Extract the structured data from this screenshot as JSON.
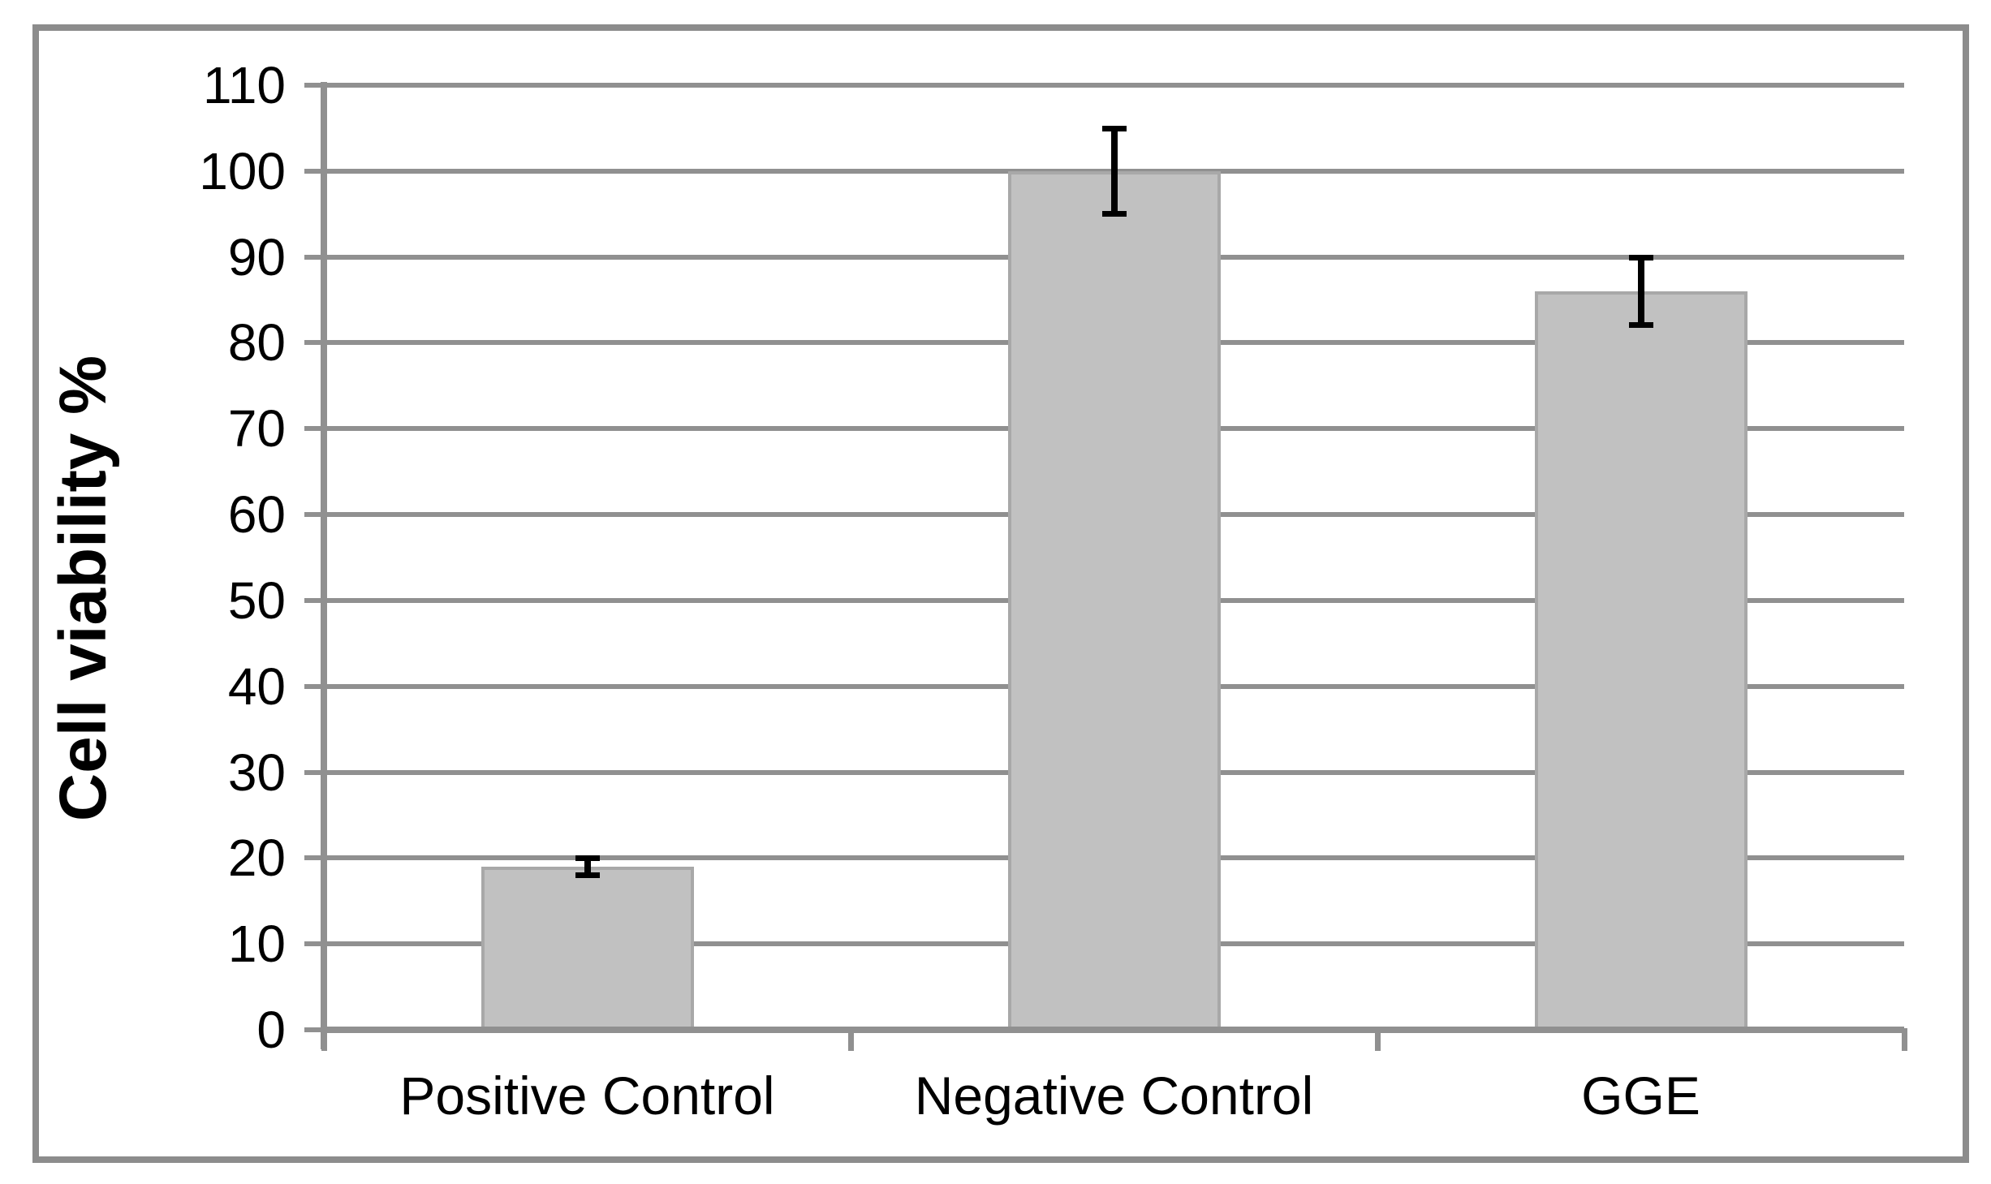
{
  "figure": {
    "background_color": "#FFFFFF",
    "frame_color": "#8C8C8C",
    "text_color": "#000000"
  },
  "chart_data": {
    "type": "bar",
    "title": "",
    "xlabel": "",
    "ylabel": "Cell viability %",
    "categories": [
      "Positive Control",
      "Negative Control",
      "GGE"
    ],
    "values": [
      19,
      100,
      86
    ],
    "errors": [
      1,
      5,
      4
    ],
    "ylim": [
      0,
      110
    ],
    "ytick_interval": 10,
    "yticks": [
      0,
      10,
      20,
      30,
      40,
      50,
      60,
      70,
      80,
      90,
      100,
      110
    ],
    "grid": "horizontal",
    "legend_position": "none",
    "bar_fill_color": "#C1C1C1",
    "bar_border_color": "#A8A8A8",
    "gridline_color": "#909090",
    "axis_color": "#909090",
    "error_bar_color": "#000000"
  }
}
